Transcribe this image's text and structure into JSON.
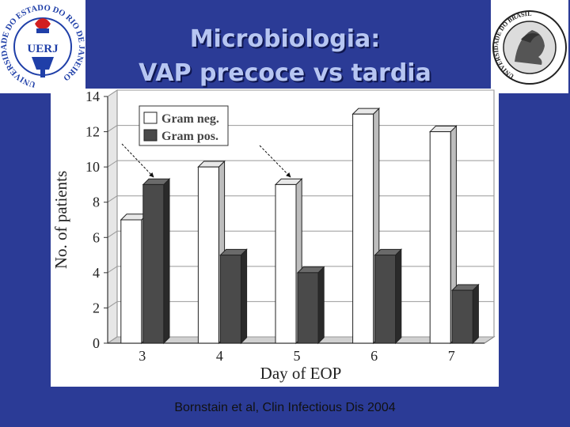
{
  "slide": {
    "title_line1": "Microbiologia:",
    "title_line2": "VAP precoce vs tardia",
    "citation": "Bornstain et al, Clin Infectious Dis 2004"
  },
  "logos": {
    "left": {
      "text": "UERJ",
      "ring_text": "UNIVERSIDADE DO ESTADO DO RIO DE JANEIRO",
      "color": "#1f3fa8",
      "accent": "#d21f1f"
    },
    "right": {
      "ring_text": "UNIVERSIDADE DO BRASIL"
    }
  },
  "chart_data": {
    "type": "bar",
    "xlabel": "Day of EOP",
    "ylabel": "No. of patients",
    "ylim": [
      0,
      14
    ],
    "yticks": [
      0,
      2,
      4,
      6,
      8,
      10,
      12,
      14
    ],
    "categories": [
      "3",
      "4",
      "5",
      "6",
      "7"
    ],
    "series": [
      {
        "name": "Gram neg.",
        "values": [
          7,
          10,
          9,
          13,
          12
        ],
        "color": "#ffffff"
      },
      {
        "name": "Gram pos.",
        "values": [
          9,
          5,
          4,
          5,
          3
        ],
        "color": "#4a4a4a"
      }
    ],
    "legend": "top-left",
    "grid": true
  },
  "colors": {
    "background": "#2b3b96",
    "title": "#b7c6f2"
  }
}
